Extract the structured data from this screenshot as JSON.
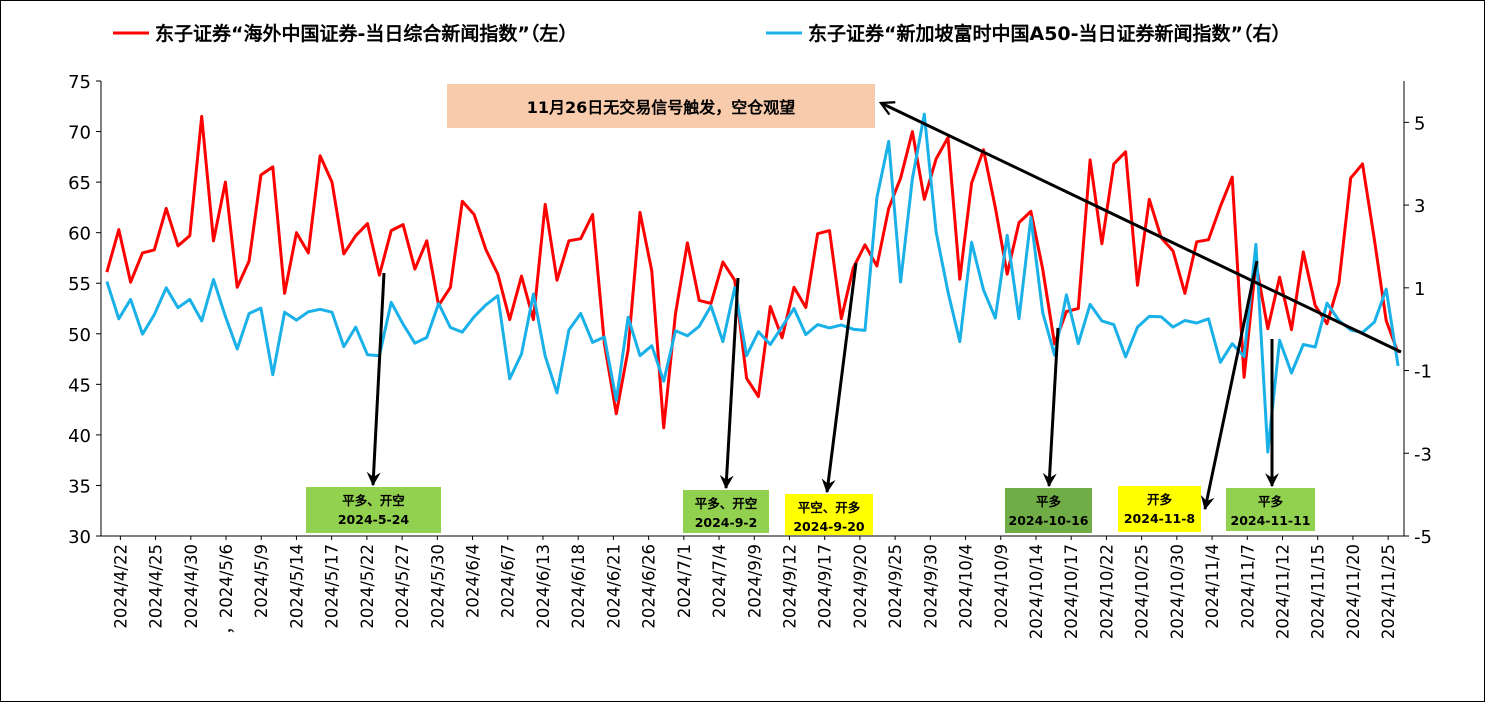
{
  "chart_data": {
    "type": "line",
    "legend": [
      {
        "name": "东子证券“海外中国证券-当日综合新闻指数”（左）",
        "color": "#ff0000"
      },
      {
        "name": "东子证券“新加坡富时中国A50-当日证券新闻指数”（右）",
        "color": "#1ab0e8"
      }
    ],
    "legend_position": "top",
    "y_left": {
      "min": 30,
      "max": 75,
      "step": 5,
      "ticks": [
        "30",
        "35",
        "40",
        "45",
        "50",
        "55",
        "60",
        "65",
        "70",
        "75"
      ]
    },
    "y_right": {
      "min": -5,
      "max": 6,
      "ticks": [
        "-5",
        "-3",
        "-1",
        "1",
        "3",
        "5"
      ]
    },
    "x_tick_labels": [
      "2024/4/22",
      "2024/4/25",
      "2024/4/30",
      "，2024/5/6",
      "2024/5/9",
      "2024/5/14",
      "2024/5/17",
      "2024/5/22",
      "2024/5/27",
      "2024/5/30",
      "2024/6/4",
      "2024/6/7",
      "2024/6/13",
      "2024/6/18",
      "2024/6/21",
      "2024/6/26",
      "2024/7/1",
      "2024/7/4",
      "2024/9/9",
      "2024/9/12",
      "2024/9/17",
      "2024/9/20",
      "2024/9/25",
      "2024/9/30",
      "2024/10/4",
      "2024/10/9",
      "2024/10/14",
      "2024/10/17",
      "2024/10/22",
      "2024/10/25",
      "2024/10/30",
      "2024/11/4",
      "2024/11/7",
      "2024/11/12",
      "2024/11/15",
      "2024/11/20",
      "2024/11/25"
    ],
    "grid": false,
    "series": [
      {
        "name": "东子证券“海外中国证券-当日综合新闻指数”（左）",
        "axis": "left",
        "color": "#ff0000",
        "values": [
          56.1,
          60.3,
          55.1,
          58.0,
          58.3,
          62.4,
          58.7,
          59.7,
          71.5,
          59.2,
          65.0,
          54.6,
          57.2,
          65.7,
          66.5,
          54.0,
          60.0,
          58.0,
          67.6,
          65.0,
          57.9,
          59.7,
          60.9,
          55.8,
          60.2,
          60.8,
          56.4,
          59.2,
          52.8,
          54.6,
          63.1,
          61.8,
          58.3,
          55.9,
          51.4,
          55.7,
          51.4,
          62.8,
          55.3,
          59.2,
          59.4,
          61.8,
          49.0,
          42.1,
          48.4,
          62.0,
          56.2,
          40.7,
          52.0,
          59.0,
          53.3,
          53.0,
          57.1,
          55.3,
          45.6,
          43.8,
          52.7,
          49.6,
          54.6,
          52.6,
          59.9,
          60.2,
          51.5,
          56.5,
          58.8,
          56.7,
          62.4,
          65.4,
          70.0,
          63.3,
          67.3,
          69.4,
          55.4,
          64.9,
          68.2,
          62.5,
          55.9,
          61.0,
          62.1,
          56.4,
          49.0,
          52.2,
          52.5,
          67.2,
          58.9,
          66.8,
          68.0,
          54.8,
          63.3,
          59.5,
          58.2,
          54.0,
          59.1,
          59.3,
          62.6,
          65.5,
          45.7,
          57.0,
          50.5,
          55.6,
          50.4,
          58.1,
          52.8,
          51.0,
          55.0,
          65.4,
          66.8,
          59.3,
          51.3,
          48.1
        ]
      },
      {
        "name": "东子证券“新加坡富时中国A50-当日证券新闻指数”（右）",
        "axis": "right",
        "color": "#1ab0e8",
        "values": [
          1.15,
          0.25,
          0.72,
          -0.12,
          0.35,
          1.0,
          0.52,
          0.72,
          0.2,
          1.2,
          0.31,
          -0.48,
          0.38,
          0.51,
          -1.1,
          0.41,
          0.22,
          0.42,
          0.48,
          0.41,
          -0.42,
          0.05,
          -0.62,
          -0.64,
          0.65,
          0.12,
          -0.34,
          -0.2,
          0.62,
          0.04,
          -0.07,
          0.3,
          0.59,
          0.81,
          -1.2,
          -0.6,
          0.85,
          -0.65,
          -1.54,
          -0.02,
          0.38,
          -0.32,
          -0.19,
          -1.72,
          0.29,
          -0.64,
          -0.4,
          -1.26,
          -0.04,
          -0.16,
          0.07,
          0.56,
          -0.3,
          1.0,
          -0.64,
          -0.06,
          -0.37,
          0.06,
          0.5,
          -0.13,
          0.11,
          0.03,
          0.1,
          0.0,
          -0.03,
          3.18,
          4.54,
          1.14,
          3.64,
          5.2,
          2.35,
          0.9,
          -0.3,
          2.1,
          0.95,
          0.27,
          2.27,
          0.25,
          2.7,
          0.4,
          -0.63,
          0.83,
          -0.35,
          0.6,
          0.2,
          0.11,
          -0.67,
          0.05,
          0.31,
          0.3,
          0.05,
          0.21,
          0.15,
          0.25,
          -0.8,
          -0.35,
          -0.66,
          2.05,
          -2.97,
          -0.27,
          -1.06,
          -0.37,
          -0.43,
          0.63,
          0.21,
          -0.02,
          -0.08,
          0.17,
          0.97,
          -0.89
        ]
      }
    ],
    "callouts": [
      {
        "text": "11月26日无交易信号触发，空仓观望",
        "bg": "#f8cbad"
      },
      {
        "line1": "平多、开空",
        "line2": "2024-5-24",
        "bg": "#92d050"
      },
      {
        "line1": "平多、开空",
        "line2": "2024-9-2",
        "bg": "#92d050"
      },
      {
        "line1": "平空、开多",
        "line2": "2024-9-20",
        "bg": "#ffff00"
      },
      {
        "line1": "平多",
        "line2": "2024-10-16",
        "bg": "#70ad47"
      },
      {
        "line1": "开多",
        "line2": "2024-11-8",
        "bg": "#ffff00"
      },
      {
        "line1": "平多",
        "line2": "2024-11-11",
        "bg": "#92d050"
      }
    ]
  }
}
